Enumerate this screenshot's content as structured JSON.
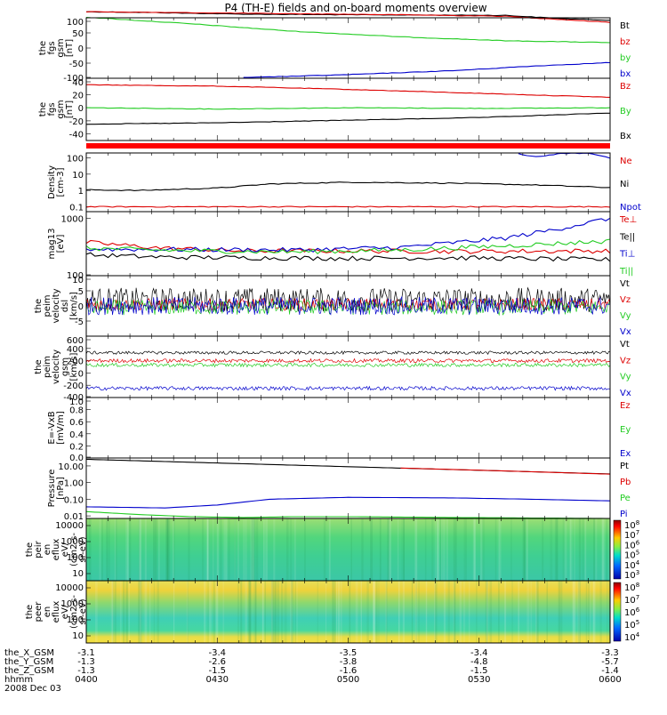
{
  "title": "P4 (TH-E) fields and on-board moments overview",
  "colors": {
    "black": "#000000",
    "red": "#dd0000",
    "green": "#22cc22",
    "blue": "#0000cc"
  },
  "x_axis": {
    "tick_times": [
      "0400",
      "0430",
      "0500",
      "0530",
      "0600"
    ],
    "rows": [
      {
        "label": "the_X_GSM",
        "values": [
          "-3.1",
          "-3.4",
          "-3.5",
          "-3.4",
          "-3.3"
        ]
      },
      {
        "label": "the_Y_GSM",
        "values": [
          "-1.3",
          "-2.6",
          "-3.8",
          "-4.8",
          "-5.7"
        ]
      },
      {
        "label": "the_Z_GSM",
        "values": [
          "-1.3",
          "-1.5",
          "-1.6",
          "-1.5",
          "-1.4"
        ]
      },
      {
        "label": "hhmm",
        "values": [
          "0400",
          "0430",
          "0500",
          "0530",
          "0600"
        ]
      }
    ],
    "date": "2008 Dec 03"
  },
  "chart_data": [
    {
      "type": "line",
      "ylabel": "the fgs gsm [nT]",
      "ylabel_lines": [
        "the",
        "fgs",
        "gsm",
        "[nT]"
      ],
      "yticks": [
        "100",
        "50",
        "0",
        "-50",
        "-100"
      ],
      "ylim": [
        -100,
        100
      ],
      "legend": [
        {
          "name": "Bt",
          "color": "#000000"
        },
        {
          "name": "bz",
          "color": "#dd0000"
        },
        {
          "name": "by",
          "color": "#22cc22"
        },
        {
          "name": "bx",
          "color": "#0000cc"
        }
      ],
      "series": [
        {
          "name": "Bt",
          "color": "#000000",
          "x": [
            0,
            0.1,
            0.3,
            0.5,
            0.8,
            0.9,
            1
          ],
          "y": [
            120,
            118,
            112,
            110,
            108,
            98,
            92
          ]
        },
        {
          "name": "bz",
          "color": "#dd0000",
          "x": [
            0,
            0.3,
            0.6,
            0.8,
            0.9,
            1
          ],
          "y": [
            120,
            115,
            110,
            105,
            95,
            85
          ]
        },
        {
          "name": "by",
          "color": "#22cc22",
          "x": [
            0,
            0.2,
            0.4,
            0.6,
            0.8,
            1
          ],
          "y": [
            102,
            80,
            55,
            37,
            24,
            18
          ]
        },
        {
          "name": "bx",
          "color": "#0000cc",
          "x": [
            0.3,
            0.5,
            0.7,
            0.85,
            1
          ],
          "y": [
            -98,
            -88,
            -75,
            -60,
            -48
          ]
        }
      ]
    },
    {
      "type": "line",
      "ylabel": "the fgs gsm [nT]",
      "ylabel_lines": [
        "the",
        "fgs",
        "gsm",
        "[nT]"
      ],
      "yticks": [
        "40",
        "20",
        "0",
        "-20",
        "-40"
      ],
      "ylim": [
        -50,
        45
      ],
      "legend": [
        {
          "name": "Bz",
          "color": "#dd0000"
        },
        {
          "name": "By",
          "color": "#22cc22"
        },
        {
          "name": "Bx",
          "color": "#000000"
        }
      ],
      "series": [
        {
          "name": "Bz",
          "color": "#dd0000",
          "x": [
            0,
            0.25,
            0.5,
            0.75,
            1
          ],
          "y": [
            35,
            33,
            28,
            22,
            16
          ]
        },
        {
          "name": "By",
          "color": "#22cc22",
          "x": [
            0,
            0.25,
            0.5,
            0.75,
            1
          ],
          "y": [
            0,
            -2,
            0,
            -1,
            0
          ]
        },
        {
          "name": "Bx",
          "color": "#000000",
          "x": [
            0,
            0.25,
            0.5,
            0.75,
            1
          ],
          "y": [
            -25,
            -23,
            -19,
            -15,
            -8
          ]
        }
      ]
    },
    {
      "type": "line",
      "ylabel": "Density [cm-3]",
      "ylabel_lines": [
        "Density",
        "[cm-3]"
      ],
      "yticks": [
        "100",
        "10",
        "1",
        "0.1"
      ],
      "ylog": true,
      "ylim": [
        0.05,
        200
      ],
      "legend": [
        {
          "name": "Ne",
          "color": "#dd0000"
        },
        {
          "name": "Ni",
          "color": "#000000"
        },
        {
          "name": "Npot",
          "color": "#0000cc"
        }
      ],
      "series": [
        {
          "name": "Ni",
          "color": "#000000",
          "x": [
            0,
            0.1,
            0.25,
            0.35,
            0.5,
            0.7,
            0.85,
            1
          ],
          "y": [
            1.1,
            1.0,
            1.4,
            2.5,
            3.2,
            2.8,
            2.2,
            1.5
          ]
        },
        {
          "name": "Ne",
          "color": "#dd0000",
          "x": [
            0,
            0.5,
            1
          ],
          "y": [
            0.1,
            0.1,
            0.1
          ]
        },
        {
          "name": "Npot",
          "color": "#0000cc",
          "x": [
            0.82,
            0.86,
            0.9,
            0.96,
            0.99,
            1
          ],
          "y": [
            200,
            110,
            180,
            200,
            120,
            90
          ]
        }
      ]
    },
    {
      "type": "line",
      "ylabel": "mag13 [eV]",
      "ylabel_lines": [
        "mag13",
        "[eV]"
      ],
      "yticks": [
        "1000",
        "100"
      ],
      "ylog": true,
      "ylim": [
        100,
        1300
      ],
      "legend": [
        {
          "name": "Te⊥",
          "color": "#dd0000"
        },
        {
          "name": "Te||",
          "color": "#000000"
        },
        {
          "name": "Ti⊥",
          "color": "#0000cc"
        },
        {
          "name": "Ti||",
          "color": "#22cc22"
        }
      ],
      "series": [
        {
          "name": "Te⊥",
          "color": "#dd0000",
          "x": [
            0,
            0.15,
            0.3,
            0.5,
            0.7,
            1
          ],
          "y": [
            380,
            300,
            270,
            270,
            265,
            270
          ]
        },
        {
          "name": "Te||",
          "color": "#000000",
          "x": [
            0,
            0.15,
            0.3,
            0.5,
            0.7,
            1
          ],
          "y": [
            230,
            210,
            205,
            200,
            205,
            190
          ]
        },
        {
          "name": "Ti⊥",
          "color": "#0000cc",
          "x": [
            0,
            0.2,
            0.4,
            0.6,
            0.8,
            0.9,
            1
          ],
          "y": [
            290,
            285,
            280,
            310,
            450,
            650,
            1000
          ]
        },
        {
          "name": "Ti||",
          "color": "#22cc22",
          "x": [
            0,
            0.2,
            0.4,
            0.6,
            0.8,
            1
          ],
          "y": [
            300,
            270,
            260,
            280,
            330,
            400
          ]
        }
      ]
    },
    {
      "type": "line",
      "ylabel": "the peim velocity dsl [km/s]",
      "ylabel_lines": [
        "the",
        "peim",
        "velocity",
        "dsl",
        "[km/s]"
      ],
      "yticks": [
        "10",
        "5",
        "0",
        "-5"
      ],
      "ylim": [
        -10,
        10
      ],
      "legend": [
        {
          "name": "Vt",
          "color": "#000000"
        },
        {
          "name": "Vz",
          "color": "#dd0000"
        },
        {
          "name": "Vy",
          "color": "#22cc22"
        },
        {
          "name": "Vx",
          "color": "#0000cc"
        }
      ],
      "series": [
        {
          "name": "Vt",
          "color": "#000000",
          "mean": 2,
          "spread": 4
        },
        {
          "name": "Vz",
          "color": "#dd0000",
          "mean": 0.5,
          "spread": 2
        },
        {
          "name": "Vy",
          "color": "#22cc22",
          "mean": -0.5,
          "spread": 2.5
        },
        {
          "name": "Vx",
          "color": "#0000cc",
          "mean": 0,
          "spread": 3
        }
      ]
    },
    {
      "type": "line",
      "ylabel": "the peim velocity gsm [km/s]",
      "ylabel_lines": [
        "the",
        "peim",
        "velocity",
        "gsm",
        "[km/s]"
      ],
      "yticks": [
        "600",
        "400",
        "200",
        "0",
        "-200",
        "-400"
      ],
      "ylim": [
        -400,
        600
      ],
      "legend": [
        {
          "name": "Vt",
          "color": "#000000"
        },
        {
          "name": "Vz",
          "color": "#dd0000"
        },
        {
          "name": "Vy",
          "color": "#22cc22"
        },
        {
          "name": "Vx",
          "color": "#0000cc"
        }
      ],
      "series": [
        {
          "name": "Vt",
          "color": "#000000",
          "mean": 330,
          "spread": 25
        },
        {
          "name": "Vz",
          "color": "#dd0000",
          "mean": 200,
          "spread": 30
        },
        {
          "name": "Vy",
          "color": "#22cc22",
          "mean": 130,
          "spread": 30
        },
        {
          "name": "Vx",
          "color": "#0000cc",
          "mean": -250,
          "spread": 30
        }
      ]
    },
    {
      "type": "line",
      "ylabel": "E=-VxB [mV/m]",
      "ylabel_lines": [
        "E=-VxB",
        "[mV/m]"
      ],
      "yticks": [
        "1.0",
        "0.8",
        "0.6",
        "0.4",
        "0.2",
        "0.0"
      ],
      "ylim": [
        0,
        1
      ],
      "legend": [
        {
          "name": "Ez",
          "color": "#dd0000"
        },
        {
          "name": "Ey",
          "color": "#22cc22"
        },
        {
          "name": "Ex",
          "color": "#0000cc"
        }
      ],
      "series": []
    },
    {
      "type": "line",
      "ylabel": "Pressure [nPa]",
      "ylabel_lines": [
        "Pressure",
        "[nPa]"
      ],
      "yticks": [
        "10.00",
        "1.00",
        "0.10",
        "0.01"
      ],
      "ylog": true,
      "ylim": [
        0.007,
        30
      ],
      "legend": [
        {
          "name": "Pt",
          "color": "#000000"
        },
        {
          "name": "Pb",
          "color": "#dd0000"
        },
        {
          "name": "Pe",
          "color": "#22cc22"
        },
        {
          "name": "Pi",
          "color": "#0000cc"
        }
      ],
      "series": [
        {
          "name": "Pt",
          "color": "#000000",
          "x": [
            0,
            0.25,
            0.5,
            0.75,
            1
          ],
          "y": [
            25,
            15,
            9,
            5.5,
            3.3
          ]
        },
        {
          "name": "Pb",
          "color": "#dd0000",
          "x": [
            0.6,
            0.8,
            1
          ],
          "y": [
            7.5,
            5,
            3.2
          ]
        },
        {
          "name": "Pi",
          "color": "#0000cc",
          "x": [
            0,
            0.15,
            0.25,
            0.35,
            0.5,
            0.7,
            0.85,
            1
          ],
          "y": [
            0.035,
            0.03,
            0.045,
            0.1,
            0.13,
            0.12,
            0.1,
            0.08
          ]
        },
        {
          "name": "Pe",
          "color": "#22cc22",
          "x": [
            0,
            0.1,
            0.2,
            0.3,
            0.4,
            0.5,
            0.7,
            1
          ],
          "y": [
            0.018,
            0.012,
            0.009,
            0.008,
            0.009,
            0.009,
            0.008,
            0.007
          ]
        }
      ]
    },
    {
      "type": "heatmap",
      "ylabel": "the peir en eflux eV/(cm2-s-sr-eV)",
      "ylabel_lines": [
        "the",
        "peir",
        "en",
        "eflux",
        "eV/",
        "(cm2-s-",
        "sr-eV)"
      ],
      "yticks": [
        "10000",
        "1000",
        "100",
        "10"
      ],
      "colorbar_ticks": [
        "10^8",
        "10^7",
        "10^6",
        "10^5",
        "10^4",
        "10^3"
      ]
    },
    {
      "type": "heatmap",
      "ylabel": "the peer en eflux eV/(cm2-s-sr-eV)",
      "ylabel_lines": [
        "the",
        "peer",
        "en",
        "eflux",
        "eV/",
        "(cm2-s-",
        "sr-eV)"
      ],
      "yticks": [
        "10000",
        "1000",
        "100",
        "10"
      ],
      "colorbar_ticks": [
        "10^8",
        "10^7",
        "10^6",
        "10^5",
        "10^4"
      ]
    }
  ]
}
